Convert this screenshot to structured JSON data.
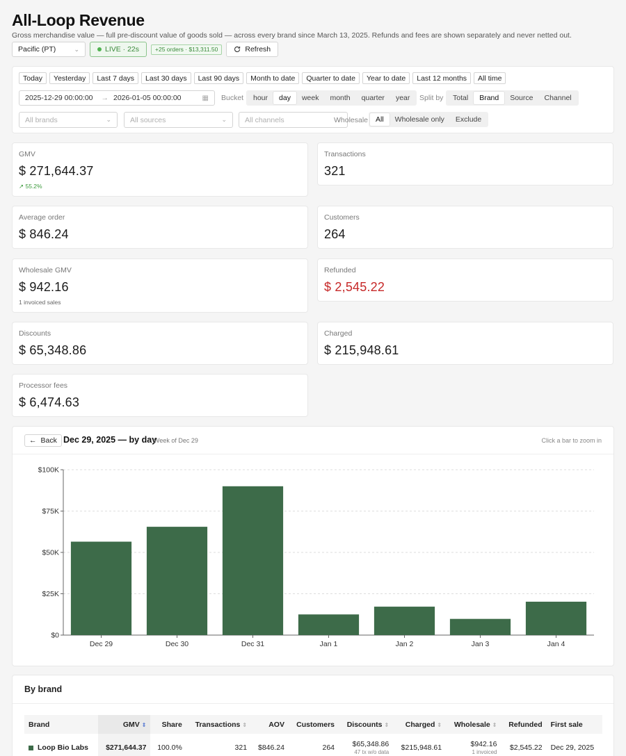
{
  "header": {
    "title": "All-Loop Revenue",
    "subtitle": "Gross merchandise value — full pre-discount value of goods sold — across every brand since March 13, 2025. Refunds and fees are shown separately and never netted out.",
    "timezone": "Pacific (PT)",
    "live_label": "LIVE · 22s",
    "orders_badge": "+25 orders · $13,311.50",
    "refresh_label": "Refresh"
  },
  "filters": {
    "ranges": [
      "Today",
      "Yesterday",
      "Last 7 days",
      "Last 30 days",
      "Last 90 days",
      "Month to date",
      "Quarter to date",
      "Year to date",
      "Last 12 months",
      "All time"
    ],
    "date_start": "2025-12-29 00:00:00",
    "date_end": "2026-01-05 00:00:00",
    "bucket_label": "Bucket",
    "buckets": [
      "hour",
      "day",
      "week",
      "month",
      "quarter",
      "year"
    ],
    "bucket_selected": "day",
    "split_label": "Split by",
    "splits": [
      "Total",
      "Brand",
      "Source",
      "Channel"
    ],
    "split_selected": "Brand",
    "brands_placeholder": "All brands",
    "sources_placeholder": "All sources",
    "channels_placeholder": "All channels",
    "wholesale_label": "Wholesale",
    "wholesale_options": [
      "All",
      "Wholesale only",
      "Exclude"
    ],
    "wholesale_selected": "All"
  },
  "kpis": {
    "gmv": {
      "label": "GMV",
      "value": "$ 271,644.37",
      "change": "55.2%"
    },
    "transactions": {
      "label": "Transactions",
      "value": "321"
    },
    "aov": {
      "label": "Average order",
      "value": "$ 846.24"
    },
    "customers": {
      "label": "Customers",
      "value": "264"
    },
    "wholesale": {
      "label": "Wholesale GMV",
      "value": "$ 942.16",
      "note": "1 invoiced sales"
    },
    "refunded": {
      "label": "Refunded",
      "value": "$ 2,545.22"
    },
    "discounts": {
      "label": "Discounts",
      "value": "$ 65,348.86"
    },
    "charged": {
      "label": "Charged",
      "value": "$ 215,948.61"
    },
    "fees": {
      "label": "Processor fees",
      "value": "$ 6,474.63"
    }
  },
  "chart": {
    "back_label": "Back",
    "title": "Dec 29, 2025 — by day",
    "subtitle": "Week of Dec 29",
    "hint": "Click a bar to zoom in"
  },
  "chart_data": {
    "type": "bar",
    "categories": [
      "Dec 29",
      "Dec 30",
      "Dec 31",
      "Jan 1",
      "Jan 2",
      "Jan 3",
      "Jan 4"
    ],
    "values": [
      56500,
      65500,
      90000,
      12500,
      17200,
      9800,
      20200
    ],
    "ylim": [
      0,
      100000
    ],
    "yticks": [
      0,
      25000,
      50000,
      75000,
      100000
    ],
    "ytick_labels": [
      "$0",
      "$25K",
      "$50K",
      "$75K",
      "$100K"
    ],
    "grid": true,
    "bar_color": "#3d6b49"
  },
  "brand_table": {
    "title": "By brand",
    "columns": [
      "Brand",
      "GMV",
      "Share",
      "Transactions",
      "AOV",
      "Customers",
      "Discounts",
      "Charged",
      "Wholesale",
      "Refunded",
      "First sale"
    ],
    "rows": [
      {
        "brand": "Loop Bio Labs",
        "gmv": "$271,644.37",
        "share": "100.0%",
        "transactions": "321",
        "aov": "$846.24",
        "customers": "264",
        "discounts": "$65,348.86",
        "discounts_note": "47 tx w/o data",
        "charged": "$215,948.61",
        "wholesale": "$942.16",
        "wholesale_note": "1 invoiced",
        "refunded": "$2,545.22",
        "first_sale": "Dec 29, 2025"
      }
    ]
  }
}
